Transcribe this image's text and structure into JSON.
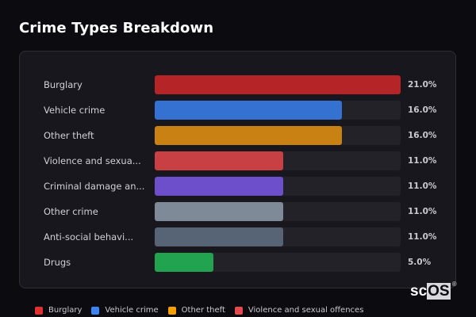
{
  "title": "Crime Types Breakdown",
  "rows": [
    {
      "label": "Burglary",
      "value": "21.0%",
      "pct": 100,
      "color": "#b52427"
    },
    {
      "label": "Vehicle crime",
      "value": "16.0%",
      "pct": 76.2,
      "color": "#3571d1"
    },
    {
      "label": "Other theft",
      "value": "16.0%",
      "pct": 76.2,
      "color": "#c98114"
    },
    {
      "label": "Violence and sexua...",
      "value": "11.0%",
      "pct": 52.4,
      "color": "#c84043"
    },
    {
      "label": "Criminal damage an...",
      "value": "11.0%",
      "pct": 52.4,
      "color": "#6e4fcb"
    },
    {
      "label": "Other crime",
      "value": "11.0%",
      "pct": 52.4,
      "color": "#7f8a99"
    },
    {
      "label": "Anti-social behavi...",
      "value": "11.0%",
      "pct": 52.4,
      "color": "#576476"
    },
    {
      "label": "Drugs",
      "value": "5.0%",
      "pct": 23.8,
      "color": "#22a34f"
    }
  ],
  "legend": [
    {
      "label": "Burglary",
      "color": "#e03131"
    },
    {
      "label": "Vehicle crime",
      "color": "#3b82f6"
    },
    {
      "label": "Other theft",
      "color": "#f59f00"
    },
    {
      "label": "Violence and sexual offences",
      "color": "#e5484d"
    }
  ],
  "watermark": {
    "prefix": "sc",
    "boxed": "OS",
    "reg": "®"
  },
  "chart_data": {
    "type": "bar",
    "orientation": "horizontal",
    "title": "Crime Types Breakdown",
    "categories": [
      "Burglary",
      "Vehicle crime",
      "Other theft",
      "Violence and sexual offences",
      "Criminal damage and arson",
      "Other crime",
      "Anti-social behaviour",
      "Drugs"
    ],
    "category_labels_displayed": [
      "Burglary",
      "Vehicle crime",
      "Other theft",
      "Violence and sexua...",
      "Criminal damage an...",
      "Other crime",
      "Anti-social behavi...",
      "Drugs"
    ],
    "values": [
      21.0,
      16.0,
      16.0,
      11.0,
      11.0,
      11.0,
      11.0,
      5.0
    ],
    "value_labels": [
      "21.0%",
      "16.0%",
      "16.0%",
      "11.0%",
      "11.0%",
      "11.0%",
      "11.0%",
      "5.0%"
    ],
    "unit": "%",
    "xlabel": "",
    "ylabel": "",
    "xlim": [
      0,
      21
    ],
    "grid": false,
    "legend": {
      "position": "bottom",
      "entries": [
        "Burglary",
        "Vehicle crime",
        "Other theft",
        "Violence and sexual offences"
      ]
    }
  }
}
